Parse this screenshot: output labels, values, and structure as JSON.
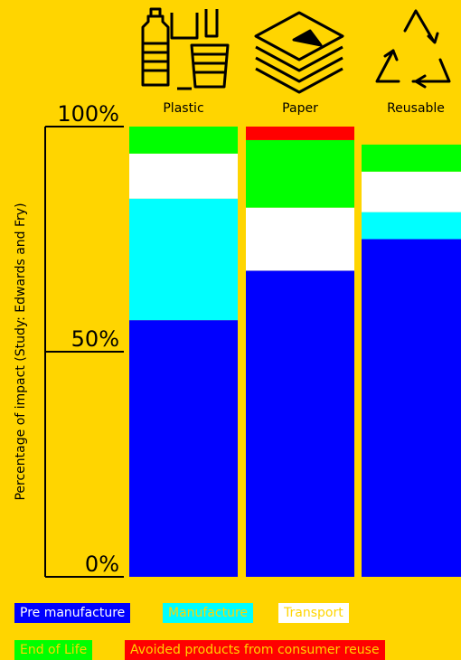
{
  "chart_data": {
    "type": "bar",
    "stacked": true,
    "orientation": "vertical",
    "ylabel": "Percentage of impact (Study: Edwards and Fry)",
    "yticks": [
      "0%",
      "50%",
      "100%"
    ],
    "ylim": [
      0,
      100
    ],
    "categories": [
      "Plastic",
      "Paper",
      "Reusable"
    ],
    "series": [
      {
        "name": "Pre manufacture",
        "color": "#0000FF",
        "values": [
          57,
          68,
          75
        ]
      },
      {
        "name": "Manufacture",
        "color": "#00FFFF",
        "values": [
          27,
          0,
          6
        ]
      },
      {
        "name": "Transport",
        "color": "#FFFFFF",
        "values": [
          10,
          14,
          9
        ]
      },
      {
        "name": "End of Life",
        "color": "#00FF00",
        "values": [
          6,
          15,
          6
        ]
      },
      {
        "name": "Avoided products from consumer reuse",
        "color": "#FF0000",
        "values": [
          0,
          3,
          0
        ]
      }
    ]
  },
  "legend": {
    "items": [
      {
        "label": "Pre manufacture",
        "bg": "#0000FF",
        "fg": "#FFFFFF"
      },
      {
        "label": "Manufacture",
        "bg": "#00FFFF",
        "fg": "#FFD500"
      },
      {
        "label": "Transport",
        "bg": "#FFFFFF",
        "fg": "#FFD500"
      },
      {
        "label": "End of Life",
        "bg": "#00FF00",
        "fg": "#FFD500"
      },
      {
        "label": "Avoided products from consumer reuse",
        "bg": "#FF0000",
        "fg": "#FFD500"
      }
    ]
  },
  "icons": [
    "plastic-bottle-cup-icon",
    "paper-stack-icon",
    "recycle-icon"
  ]
}
